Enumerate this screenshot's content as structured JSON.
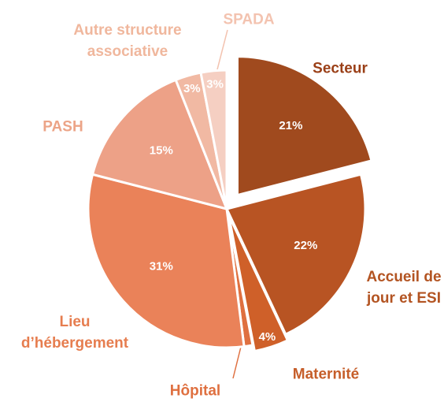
{
  "chart_data": {
    "type": "pie",
    "categories": [
      "Secteur",
      "Accueil de jour et ESI",
      "Maternité",
      "Hôpital",
      "Lieu d’hébergement",
      "PASH",
      "Autre structure associative",
      "SPADA"
    ],
    "values": [
      21,
      22,
      4,
      1,
      31,
      15,
      3,
      3
    ],
    "value_labels": [
      "21%",
      "22%",
      "4%",
      null,
      "31%",
      "15%",
      "3%",
      "3%"
    ],
    "colors": [
      "#a04a1e",
      "#b85423",
      "#cf6029",
      "#df7040",
      "#ea8259",
      "#eda187",
      "#f1b9a3",
      "#f5cfc2"
    ],
    "label_colors": [
      "#9a3f17",
      "#b35422",
      "#c65e2a",
      "#df7040",
      "#e67d4f",
      "#eca487",
      "#f0b79d",
      "#f3c3b0"
    ]
  }
}
